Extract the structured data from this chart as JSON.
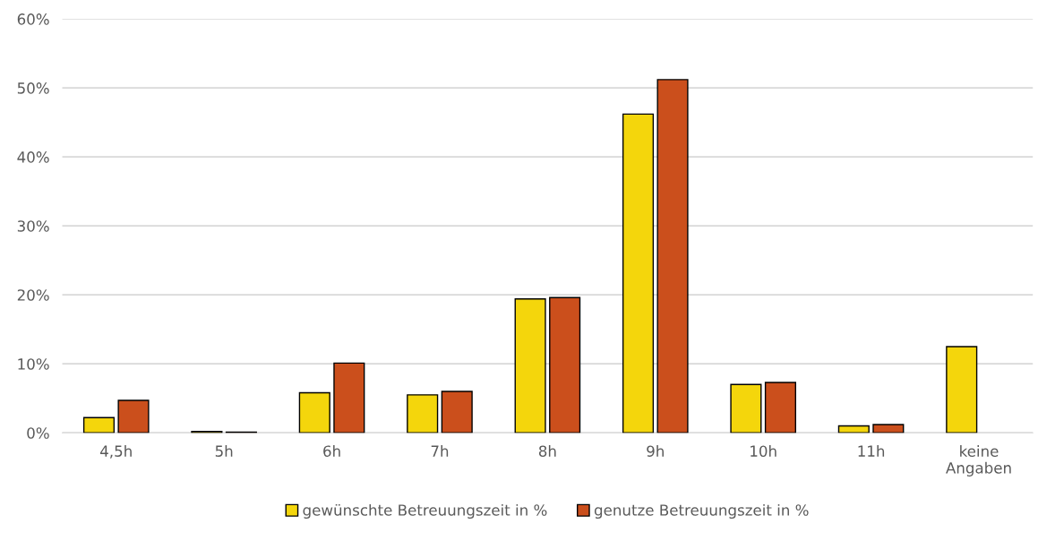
{
  "chart_data": {
    "type": "bar",
    "categories": [
      "4,5h",
      "5h",
      "6h",
      "7h",
      "8h",
      "9h",
      "10h",
      "11h",
      "keine\nAngaben"
    ],
    "series": [
      {
        "name": "gewünschte Betreuungszeit in %",
        "color": "#f4d60c",
        "values": [
          2.2,
          0.2,
          5.8,
          5.5,
          19.4,
          46.2,
          7.0,
          1.0,
          12.5
        ]
      },
      {
        "name": "genutze Betreuungszeit in %",
        "color": "#cb4f1c",
        "values": [
          4.7,
          0.1,
          10.1,
          6.0,
          19.6,
          51.2,
          7.3,
          1.2,
          null
        ]
      }
    ],
    "ylim": [
      0,
      60
    ],
    "yticks": [
      {
        "value": 0,
        "label": "0%"
      },
      {
        "value": 10,
        "label": "10%"
      },
      {
        "value": 20,
        "label": "20%"
      },
      {
        "value": 30,
        "label": "30%"
      },
      {
        "value": 40,
        "label": "40%"
      },
      {
        "value": 50,
        "label": "50%"
      },
      {
        "value": 60,
        "label": "60%"
      }
    ],
    "grid": "y",
    "legend": "bottom"
  }
}
